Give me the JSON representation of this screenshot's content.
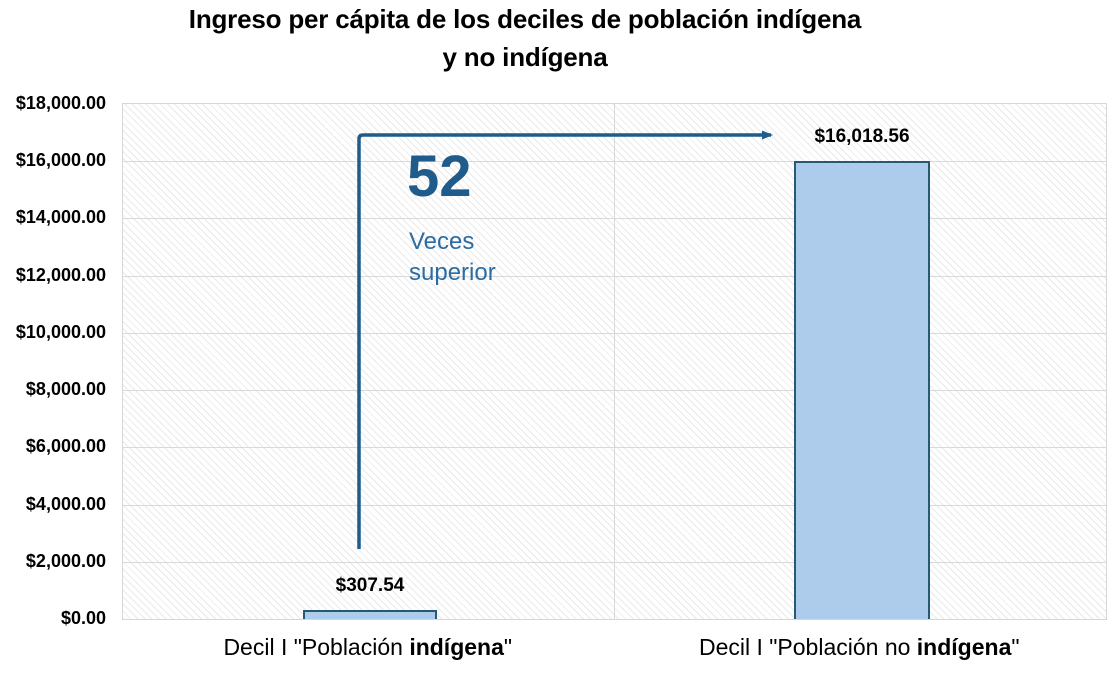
{
  "title": {
    "line1": "Ingreso per cápita de los deciles de población indígena",
    "line2": "y no indígena"
  },
  "chart_data": {
    "type": "bar",
    "title": "Ingreso per cápita de los deciles de población indígena y no indígena",
    "categories": [
      "Decil I \"Población indígena\"",
      "Decil I \"Población no indígena\""
    ],
    "values": [
      307.54,
      16018.56
    ],
    "value_labels": [
      "$307.54",
      "$16,018.56"
    ],
    "x_label_parts": [
      {
        "pre": "Decil I \"Población ",
        "bold": "indígena",
        "post": "\""
      },
      {
        "pre": "Decil I \"Población no ",
        "bold": "indígena",
        "post": "\""
      }
    ],
    "xlabel": "",
    "ylabel": "",
    "ylim": [
      0,
      18000
    ],
    "ytick_interval": 2000,
    "yticks": [
      {
        "value": 0,
        "label": "$0.00"
      },
      {
        "value": 2000,
        "label": "$2,000.00"
      },
      {
        "value": 4000,
        "label": "$4,000.00"
      },
      {
        "value": 6000,
        "label": "$6,000.00"
      },
      {
        "value": 8000,
        "label": "$8,000.00"
      },
      {
        "value": 10000,
        "label": "$10,000.00"
      },
      {
        "value": 12000,
        "label": "$12,000.00"
      },
      {
        "value": 14000,
        "label": "$14,000.00"
      },
      {
        "value": 16000,
        "label": "$16,000.00"
      },
      {
        "value": 18000,
        "label": "$18,000.00"
      }
    ],
    "grid": true,
    "legend_position": "none",
    "annotation": {
      "big_number": "52",
      "text_line1": "Veces",
      "text_line2": "superior"
    },
    "colors": {
      "bar_fill": "#ADCBEA",
      "bar_border": "#265A74",
      "arrow": "#1F5C8B",
      "annotation_number": "#1F5C8B",
      "annotation_text": "#2B6CA3",
      "gridline": "#D9D9D9",
      "axis_text": "#000000"
    }
  }
}
